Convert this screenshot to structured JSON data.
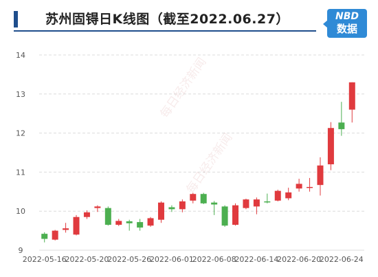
{
  "header": {
    "title": "苏州固锝日K线图（截至2022.06.27）",
    "logo_line1": "NBD",
    "logo_line2": "数据"
  },
  "watermark": "每日经济新闻",
  "colors": {
    "up": "#e03a3e",
    "down": "#4caf50",
    "accent": "#1f4e8c",
    "logo": "#2f8ad6"
  },
  "chart_data": {
    "type": "candlestick",
    "title": "苏州固锝日K线图（截至2022.06.27）",
    "ylim": [
      9,
      14
    ],
    "yticks": [
      9,
      10,
      11,
      12,
      13,
      14
    ],
    "xtick_labels": [
      "2022-05-16",
      "2022-05-20",
      "2022-05-26",
      "2022-06-01",
      "2022-06-08",
      "2022-06-14",
      "2022-06-20",
      "2022-06-24"
    ],
    "xtick_index": [
      0,
      4,
      8,
      12,
      16,
      20,
      24,
      28
    ],
    "ohlc": [
      {
        "date": "2022-05-16",
        "open": 9.42,
        "close": 9.29,
        "high": 9.46,
        "low": 9.2
      },
      {
        "date": "2022-05-17",
        "open": 9.27,
        "close": 9.5,
        "high": 9.52,
        "low": 9.25
      },
      {
        "date": "2022-05-18",
        "open": 9.52,
        "close": 9.56,
        "high": 9.7,
        "low": 9.45
      },
      {
        "date": "2022-05-19",
        "open": 9.4,
        "close": 9.85,
        "high": 9.9,
        "low": 9.38
      },
      {
        "date": "2022-05-20",
        "open": 9.85,
        "close": 9.97,
        "high": 10.02,
        "low": 9.8
      },
      {
        "date": "2022-05-23",
        "open": 10.08,
        "close": 10.12,
        "high": 10.15,
        "low": 9.98
      },
      {
        "date": "2022-05-24",
        "open": 10.08,
        "close": 9.65,
        "high": 10.12,
        "low": 9.63
      },
      {
        "date": "2022-05-25",
        "open": 9.65,
        "close": 9.75,
        "high": 9.8,
        "low": 9.62
      },
      {
        "date": "2022-05-26",
        "open": 9.74,
        "close": 9.69,
        "high": 9.78,
        "low": 9.5
      },
      {
        "date": "2022-05-27",
        "open": 9.72,
        "close": 9.58,
        "high": 9.8,
        "low": 9.5
      },
      {
        "date": "2022-05-30",
        "open": 9.63,
        "close": 9.82,
        "high": 9.85,
        "low": 9.6
      },
      {
        "date": "2022-05-31",
        "open": 9.78,
        "close": 10.22,
        "high": 10.25,
        "low": 9.7
      },
      {
        "date": "2022-06-01",
        "open": 10.1,
        "close": 10.05,
        "high": 10.15,
        "low": 9.98
      },
      {
        "date": "2022-06-02",
        "open": 10.05,
        "close": 10.25,
        "high": 10.3,
        "low": 9.97
      },
      {
        "date": "2022-06-06",
        "open": 10.27,
        "close": 10.44,
        "high": 10.47,
        "low": 10.2
      },
      {
        "date": "2022-06-07",
        "open": 10.44,
        "close": 10.2,
        "high": 10.47,
        "low": 10.18
      },
      {
        "date": "2022-06-08",
        "open": 10.22,
        "close": 10.17,
        "high": 10.26,
        "low": 9.9
      },
      {
        "date": "2022-06-09",
        "open": 10.12,
        "close": 9.63,
        "high": 10.15,
        "low": 9.6
      },
      {
        "date": "2022-06-10",
        "open": 9.65,
        "close": 10.15,
        "high": 10.2,
        "low": 9.63
      },
      {
        "date": "2022-06-13",
        "open": 10.08,
        "close": 10.3,
        "high": 10.32,
        "low": 10.05
      },
      {
        "date": "2022-06-14",
        "open": 10.12,
        "close": 10.3,
        "high": 10.35,
        "low": 9.92
      },
      {
        "date": "2022-06-15",
        "open": 10.25,
        "close": 10.23,
        "high": 10.45,
        "low": 10.2
      },
      {
        "date": "2022-06-16",
        "open": 10.27,
        "close": 10.52,
        "high": 10.55,
        "low": 10.25
      },
      {
        "date": "2022-06-17",
        "open": 10.33,
        "close": 10.48,
        "high": 10.6,
        "low": 10.28
      },
      {
        "date": "2022-06-20",
        "open": 10.58,
        "close": 10.7,
        "high": 10.83,
        "low": 10.5
      },
      {
        "date": "2022-06-21",
        "open": 10.6,
        "close": 10.62,
        "high": 10.85,
        "low": 10.5
      },
      {
        "date": "2022-06-22",
        "open": 10.67,
        "close": 11.17,
        "high": 11.38,
        "low": 10.4
      },
      {
        "date": "2022-06-23",
        "open": 11.2,
        "close": 12.13,
        "high": 12.28,
        "low": 11.05
      },
      {
        "date": "2022-06-24",
        "open": 12.27,
        "close": 12.1,
        "high": 12.8,
        "low": 11.93
      },
      {
        "date": "2022-06-27",
        "open": 12.6,
        "close": 13.3,
        "high": 13.3,
        "low": 12.27
      }
    ]
  }
}
